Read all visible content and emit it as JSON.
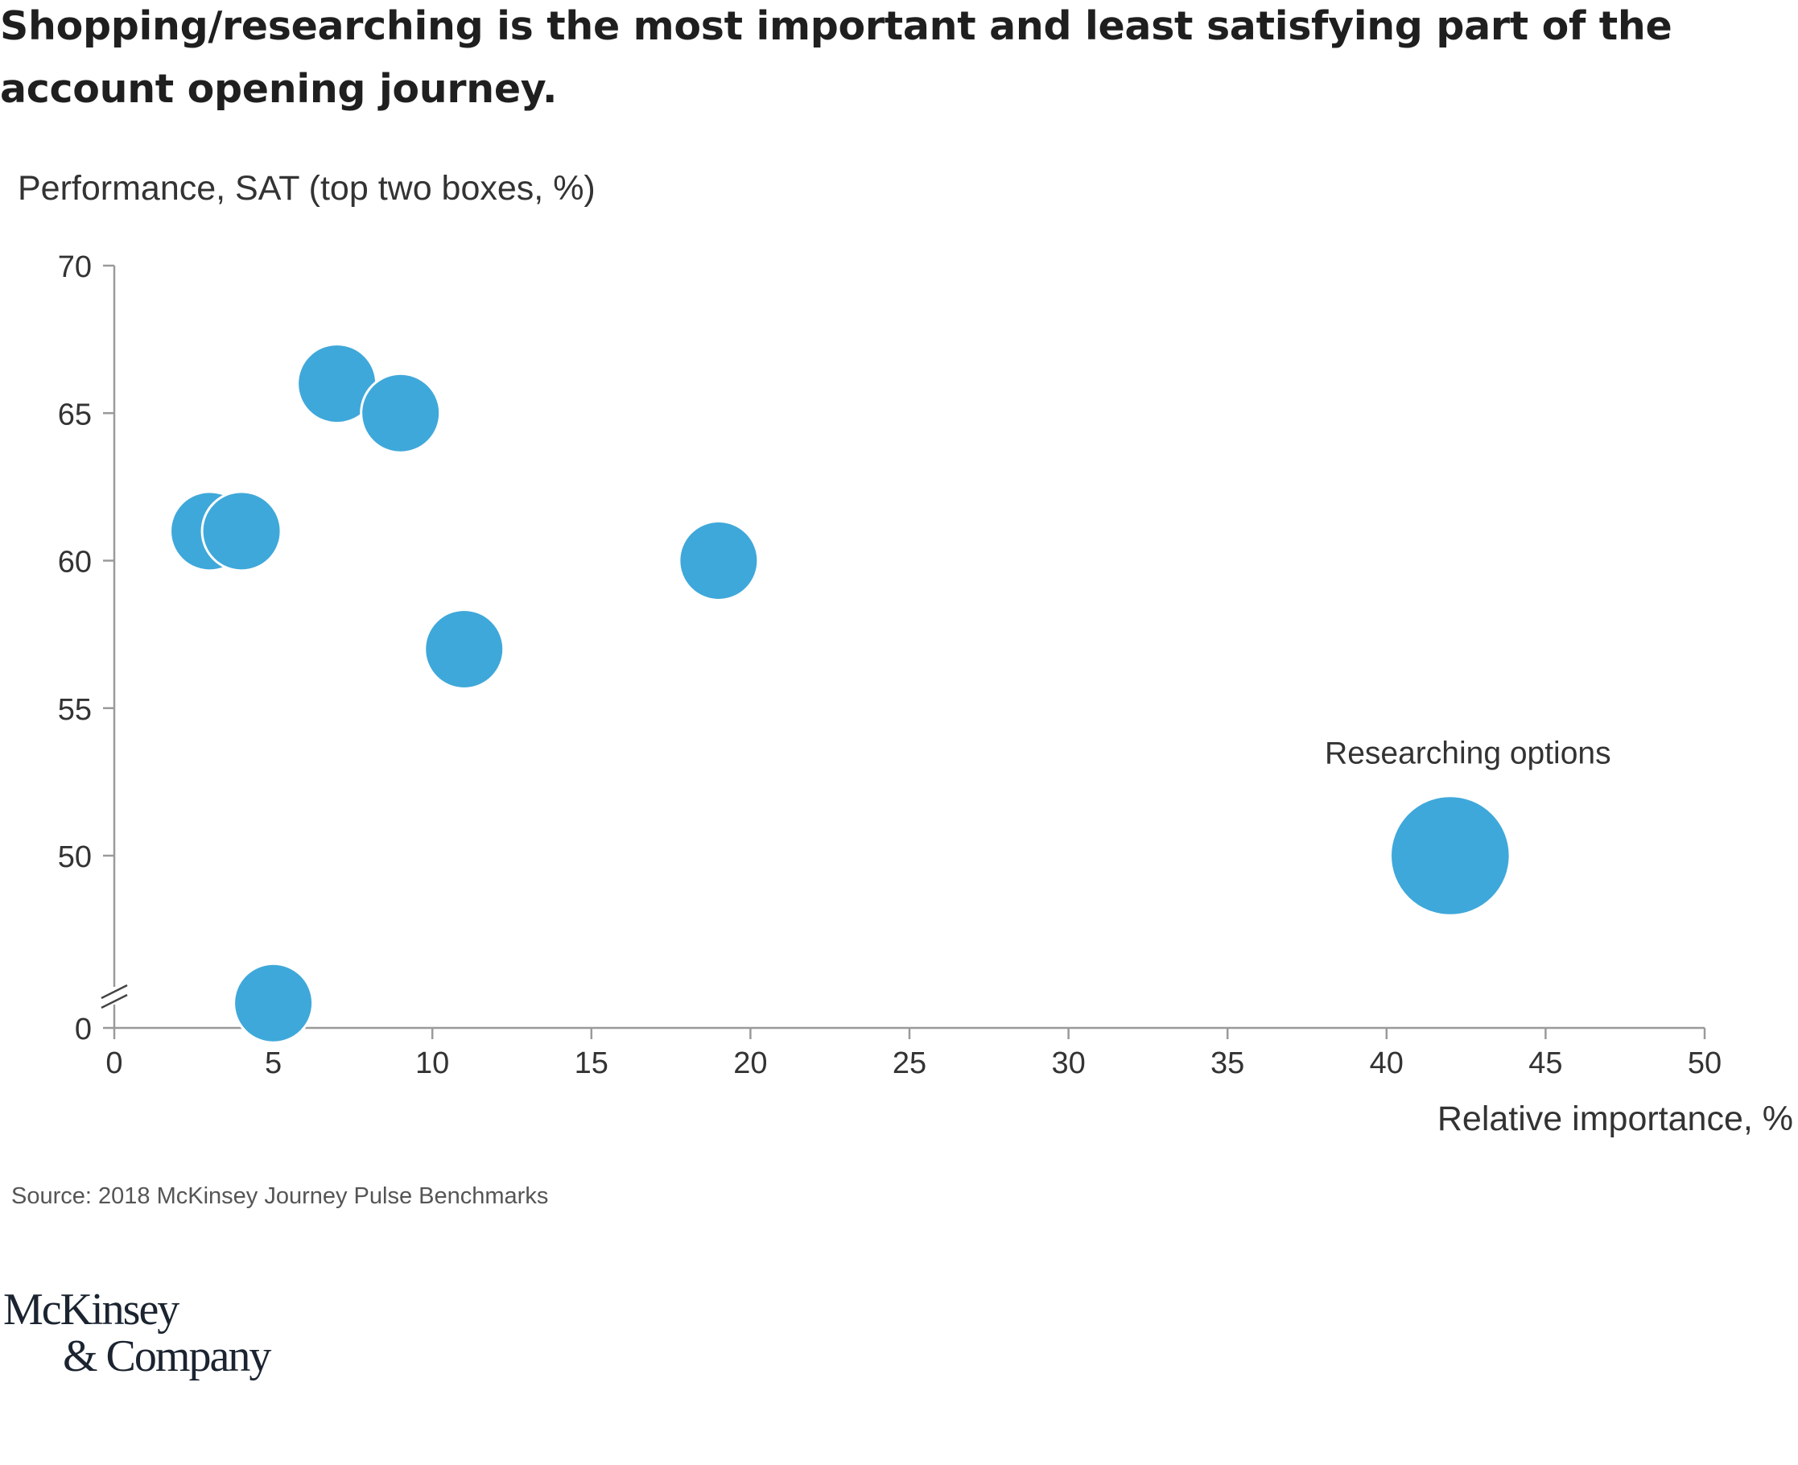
{
  "title": "Shopping/researching is the most important and least satisfying part of the account opening journey.",
  "source": "Source: 2018 McKinsey Journey Pulse Benchmarks",
  "logo": {
    "line1": "McKinsey",
    "line2": "& Company"
  },
  "colors": {
    "bubble": "#3FA8DA",
    "axis": "#9a9a9a",
    "text": "#333333"
  },
  "chart_data": {
    "type": "scatter",
    "title": "Shopping/researching is the most important and least satisfying part of the account opening journey.",
    "xlabel": "Relative importance, %",
    "ylabel": "Performance, SAT (top two boxes, %)",
    "xlim": [
      0,
      50
    ],
    "ylim": [
      45,
      70
    ],
    "y_axis_break": true,
    "x_ticks": [
      0,
      5,
      10,
      15,
      20,
      25,
      30,
      35,
      40,
      45,
      50
    ],
    "y_ticks": [
      0,
      50,
      55,
      60,
      65,
      70
    ],
    "points": [
      {
        "x": 3,
        "y": 61,
        "size": 1,
        "label": ""
      },
      {
        "x": 4,
        "y": 61,
        "size": 1,
        "label": ""
      },
      {
        "x": 7,
        "y": 66,
        "size": 1,
        "label": ""
      },
      {
        "x": 9,
        "y": 65,
        "size": 1,
        "label": ""
      },
      {
        "x": 11,
        "y": 57,
        "size": 1,
        "label": ""
      },
      {
        "x": 19,
        "y": 60,
        "size": 1,
        "label": ""
      },
      {
        "x": 5,
        "y": 45,
        "size": 1,
        "label": ""
      },
      {
        "x": 42,
        "y": 50,
        "size": 2.3,
        "label": "Researching options"
      }
    ]
  }
}
